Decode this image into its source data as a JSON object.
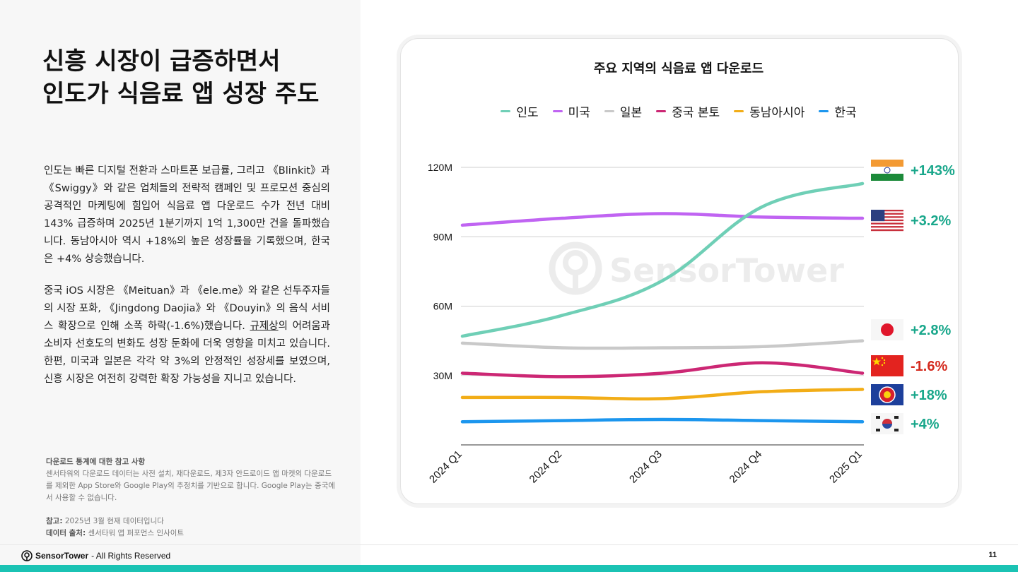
{
  "header": {
    "title_line1": "신흥  시장이  급증하면서",
    "title_line2": "인도가 식음료 앱 성장 주도"
  },
  "body": {
    "p1": "인도는 빠른 디지털 전환과 스마트폰 보급률, 그리고 《Blinkit》과 《Swiggy》와 같은 업체들의 전략적 캠페인 및 프로모션 중심의 공격적인 마케팅에 힘입어 식음료 앱 다운로드 수가 전년 대비 143% 급증하며 2025년 1분기까지 1억 1,300만 건을 돌파했습니다. 동남아시아 역시 +18%의 높은 성장률을 기록했으며, 한국은 +4% 상승했습니다.",
    "p2_a": "중국 iOS 시장은 《Meituan》과 《ele.me》와 같은 선두주자들의 시장 포화, 《Jingdong Daojia》와 《Douyin》의 음식 서비스 확장으로 인해 소폭 하락(-1.6%)했습니다. ",
    "p2_u": "규제상",
    "p2_b": "의 어려움과 소비자 선호도의 변화도 성장 둔화에 더욱 영향을 미치고 있습니다. 한편, 미국과 일본은 각각 약 3%의 안정적인 성장세를 보였으며, 신흥 시장은 여전히 강력한 확장 가능성을 지니고 있습니다."
  },
  "notes": {
    "heading": "다운로드 통계에 대한 참고 사항",
    "text": "센서타워의 다운로드 데이터는 사전 설치, 재다운로드, 제3자 안드로이드 앱 마켓의 다운로드를 제외한 App Store와 Google Play의 추정치를 기반으로 합니다. Google Play는 중국에서 사용할 수 없습니다.",
    "ref_label": "참고:",
    "ref_text": " 2025년 3월 현재 데이터입니다",
    "source_label": "데이터 출처:",
    "source_text": " 센서타워 앱 퍼포먼스 인사이트"
  },
  "footer": {
    "brand": "SensorTower",
    "rights": "- All Rights Reserved",
    "page": "11"
  },
  "watermark": "SensorTower",
  "chart_data": {
    "type": "line",
    "title": "주요 지역의 식음료 앱 다운로드",
    "categories": [
      "2024 Q1",
      "2024 Q2",
      "2024 Q3",
      "2024 Q4",
      "2025 Q1"
    ],
    "y_ticks": [
      "30M",
      "60M",
      "90M",
      "120M"
    ],
    "ylim": [
      0,
      120
    ],
    "unit": "M",
    "grid": true,
    "legend_position": "top",
    "series": [
      {
        "name": "인도",
        "color": "#6fcfb6",
        "values": [
          47,
          56,
          71,
          103,
          113
        ],
        "change": "+143%",
        "change_color": "#19a78b",
        "flag": "india-flag-icon"
      },
      {
        "name": "미국",
        "color": "#c064f2",
        "values": [
          95,
          98,
          100,
          98.5,
          98
        ],
        "change": "+3.2%",
        "change_color": "#19a78b",
        "flag": "usa-flag-icon"
      },
      {
        "name": "일본",
        "color": "#c9c9c9",
        "values": [
          44,
          42,
          42,
          42.5,
          45
        ],
        "change": "+2.8%",
        "change_color": "#19a78b",
        "flag": "japan-flag-icon"
      },
      {
        "name": "중국 본토",
        "color": "#cc2774",
        "values": [
          31,
          29.5,
          31,
          35.5,
          31
        ],
        "change": "-1.6%",
        "change_color": "#d42a1e",
        "flag": "china-flag-icon"
      },
      {
        "name": "동남아시아",
        "color": "#f2ad17",
        "values": [
          20.5,
          20.5,
          20,
          23,
          24
        ],
        "change": "+18%",
        "change_color": "#19a78b",
        "flag": "asean-flag-icon"
      },
      {
        "name": "한국",
        "color": "#1c96ee",
        "values": [
          10,
          10.5,
          11,
          10.5,
          10
        ],
        "change": "+4%",
        "change_color": "#19a78b",
        "flag": "korea-flag-icon"
      }
    ]
  }
}
